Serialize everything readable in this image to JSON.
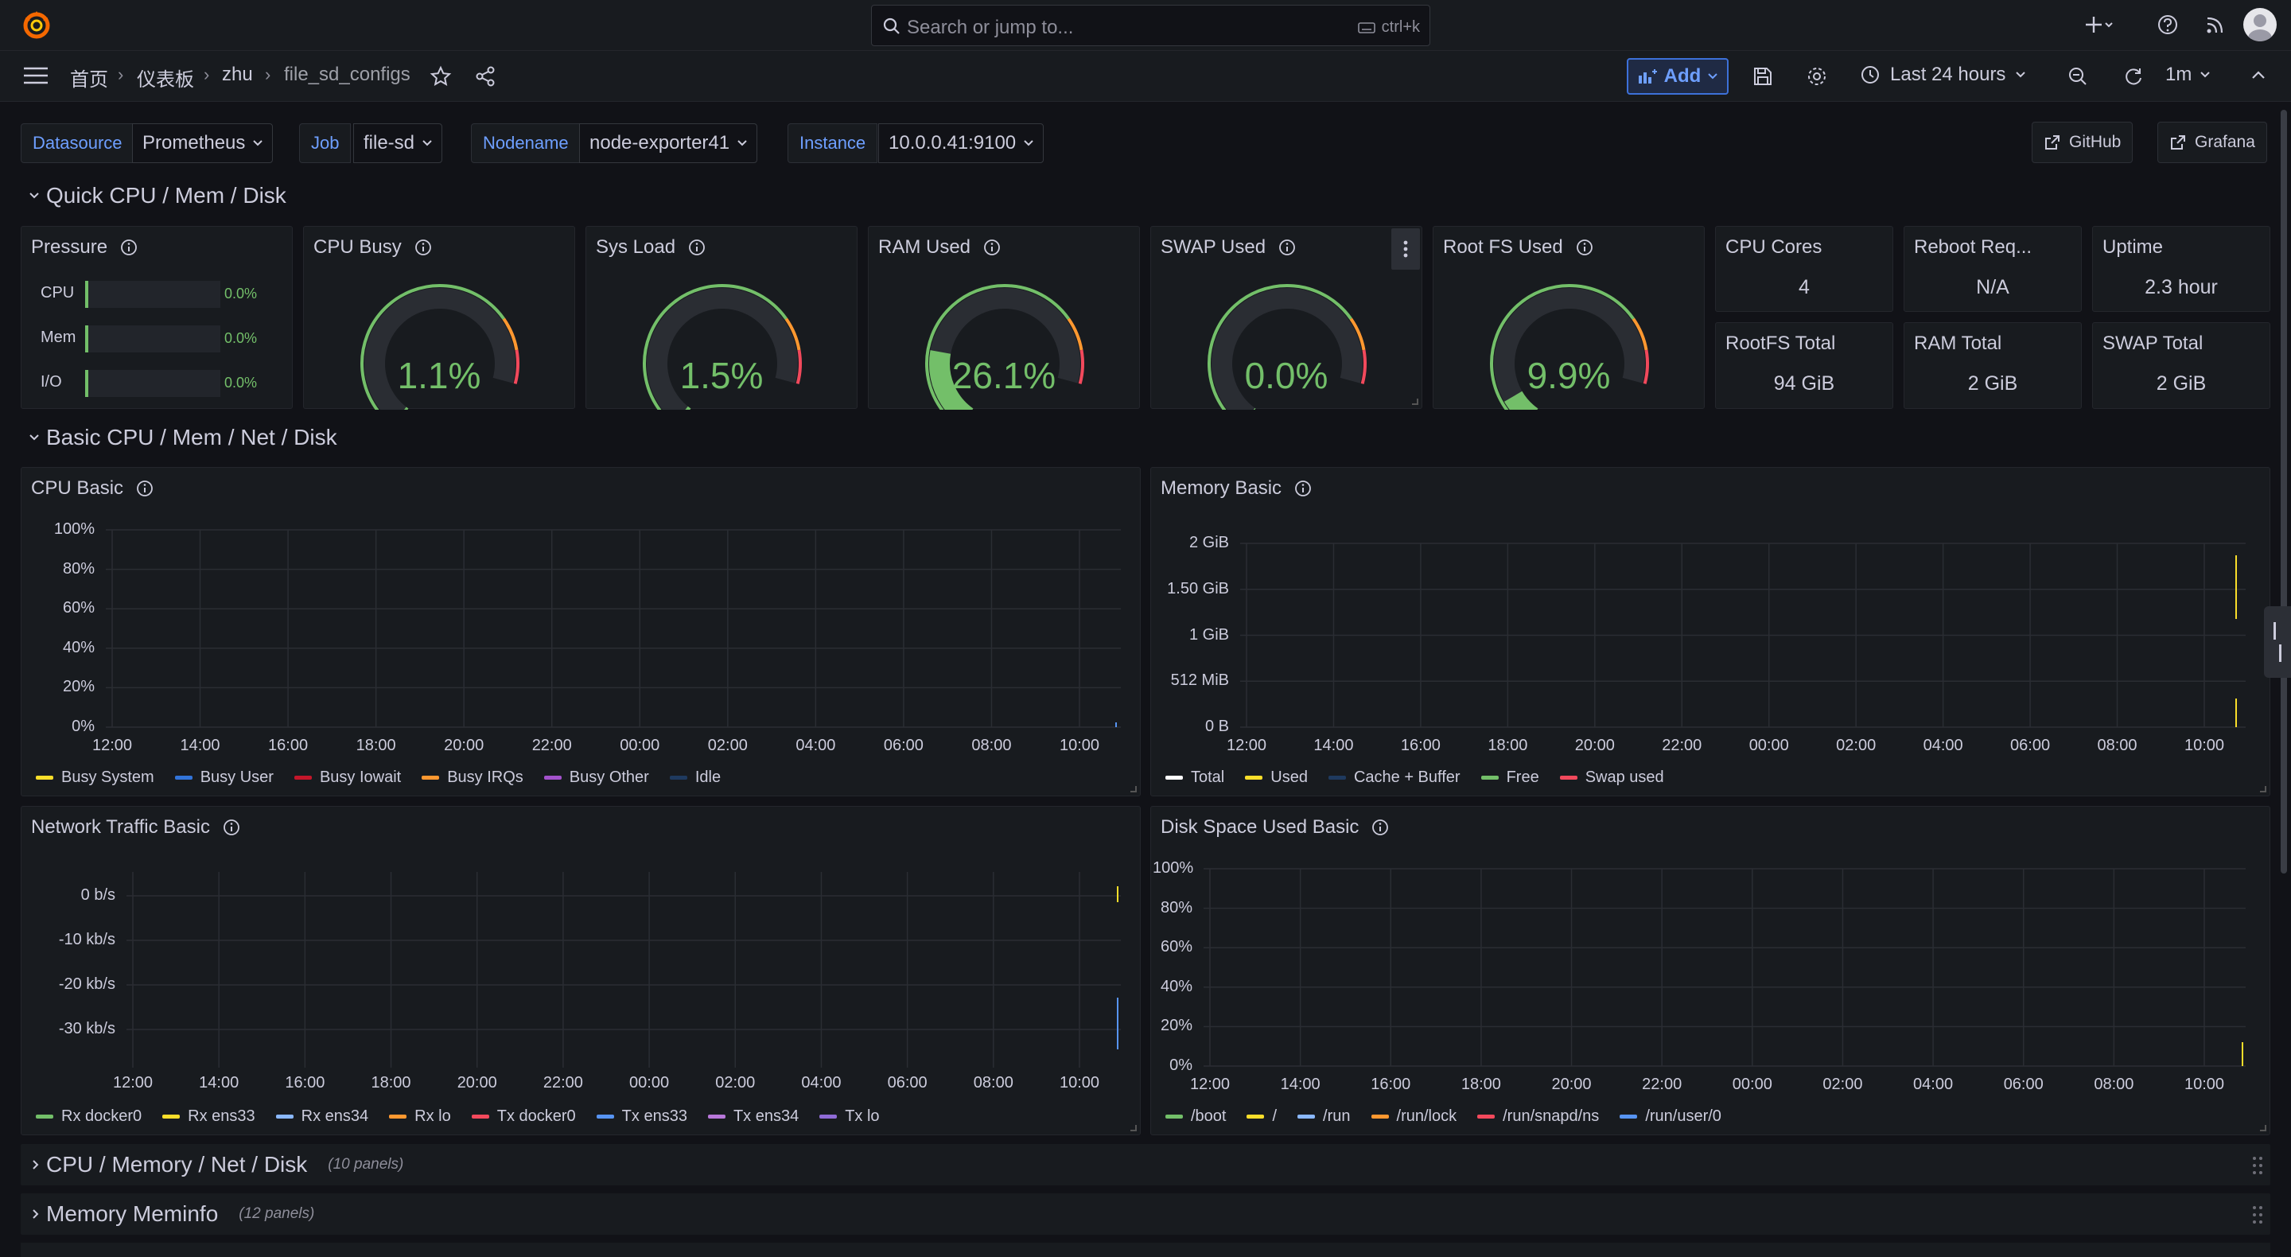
{
  "topbar": {
    "search_placeholder": "Search or jump to...",
    "search_shortcut": "ctrl+k"
  },
  "breadcrumb": [
    "首页",
    "仪表板",
    "zhu",
    "file_sd_configs"
  ],
  "toolbar": {
    "add_label": "Add",
    "time_range": "Last 24 hours",
    "refresh_interval": "1m"
  },
  "variables": [
    {
      "label": "Datasource",
      "value": "Prometheus"
    },
    {
      "label": "Job",
      "value": "file-sd"
    },
    {
      "label": "Nodename",
      "value": "node-exporter41"
    },
    {
      "label": "Instance",
      "value": "10.0.0.41:9100"
    }
  ],
  "links": {
    "github": "GitHub",
    "grafana": "Grafana"
  },
  "rows": {
    "quick": "Quick CPU / Mem / Disk",
    "basic": "Basic CPU / Mem / Net / Disk",
    "collapsed": [
      {
        "title": "CPU / Memory / Net / Disk",
        "sub": "(10 panels)"
      },
      {
        "title": "Memory Meminfo",
        "sub": "(12 panels)"
      }
    ]
  },
  "pressure": {
    "title": "Pressure",
    "rows": [
      {
        "label": "CPU",
        "value": "0.0%"
      },
      {
        "label": "Mem",
        "value": "0.0%"
      },
      {
        "label": "I/O",
        "value": "0.0%"
      }
    ]
  },
  "gauges": [
    {
      "title": "CPU Busy",
      "value": "1.1%",
      "percent": 1.1
    },
    {
      "title": "Sys Load",
      "value": "1.5%",
      "percent": 1.5
    },
    {
      "title": "RAM Used",
      "value": "26.1%",
      "percent": 26.1
    },
    {
      "title": "SWAP Used",
      "value": "0.0%",
      "percent": 0.0
    },
    {
      "title": "Root FS Used",
      "value": "9.9%",
      "percent": 9.9
    }
  ],
  "stats": [
    {
      "title": "CPU Cores",
      "value": "4"
    },
    {
      "title": "Reboot Req...",
      "value": "N/A"
    },
    {
      "title": "Uptime",
      "value": "2.3 hour"
    },
    {
      "title": "RootFS Total",
      "value": "94 GiB"
    },
    {
      "title": "RAM Total",
      "value": "2 GiB"
    },
    {
      "title": "SWAP Total",
      "value": "2 GiB"
    }
  ],
  "time_ticks": [
    "12:00",
    "14:00",
    "16:00",
    "18:00",
    "20:00",
    "22:00",
    "00:00",
    "02:00",
    "04:00",
    "06:00",
    "08:00",
    "10:00"
  ],
  "cpu_basic": {
    "title": "CPU Basic",
    "y_ticks": [
      "100%",
      "80%",
      "60%",
      "40%",
      "20%",
      "0%"
    ],
    "legend": [
      {
        "name": "Busy System",
        "color": "#fade2a"
      },
      {
        "name": "Busy User",
        "color": "#3274d9"
      },
      {
        "name": "Busy Iowait",
        "color": "#c4162a"
      },
      {
        "name": "Busy IRQs",
        "color": "#ff9830"
      },
      {
        "name": "Busy Other",
        "color": "#a352cc"
      },
      {
        "name": "Idle",
        "color": "#1f3a5f"
      }
    ]
  },
  "memory_basic": {
    "title": "Memory Basic",
    "y_ticks": [
      "2 GiB",
      "1.50 GiB",
      "1 GiB",
      "512 MiB",
      "0 B"
    ],
    "legend": [
      {
        "name": "Total",
        "color": "#ffffff"
      },
      {
        "name": "Used",
        "color": "#fade2a"
      },
      {
        "name": "Cache + Buffer",
        "color": "#1f3a5f"
      },
      {
        "name": "Free",
        "color": "#73bf69"
      },
      {
        "name": "Swap used",
        "color": "#f2495c"
      }
    ]
  },
  "network_basic": {
    "title": "Network Traffic Basic",
    "y_ticks": [
      "0 b/s",
      "-10 kb/s",
      "-20 kb/s",
      "-30 kb/s"
    ],
    "legend": [
      {
        "name": "Rx docker0",
        "color": "#73bf69"
      },
      {
        "name": "Rx ens33",
        "color": "#fade2a"
      },
      {
        "name": "Rx ens34",
        "color": "#8ab8ff"
      },
      {
        "name": "Rx lo",
        "color": "#ff9830"
      },
      {
        "name": "Tx docker0",
        "color": "#f2495c"
      },
      {
        "name": "Tx ens33",
        "color": "#5794f2"
      },
      {
        "name": "Tx ens34",
        "color": "#b877d9"
      },
      {
        "name": "Tx lo",
        "color": "#8f6bd6"
      }
    ]
  },
  "disk_basic": {
    "title": "Disk Space Used Basic",
    "y_ticks": [
      "100%",
      "80%",
      "60%",
      "40%",
      "20%",
      "0%"
    ],
    "legend": [
      {
        "name": "/boot",
        "color": "#73bf69"
      },
      {
        "name": "/",
        "color": "#fade2a"
      },
      {
        "name": "/run",
        "color": "#8ab8ff"
      },
      {
        "name": "/run/lock",
        "color": "#ff9830"
      },
      {
        "name": "/run/snapd/ns",
        "color": "#f2495c"
      },
      {
        "name": "/run/user/0",
        "color": "#5794f2"
      }
    ]
  }
}
